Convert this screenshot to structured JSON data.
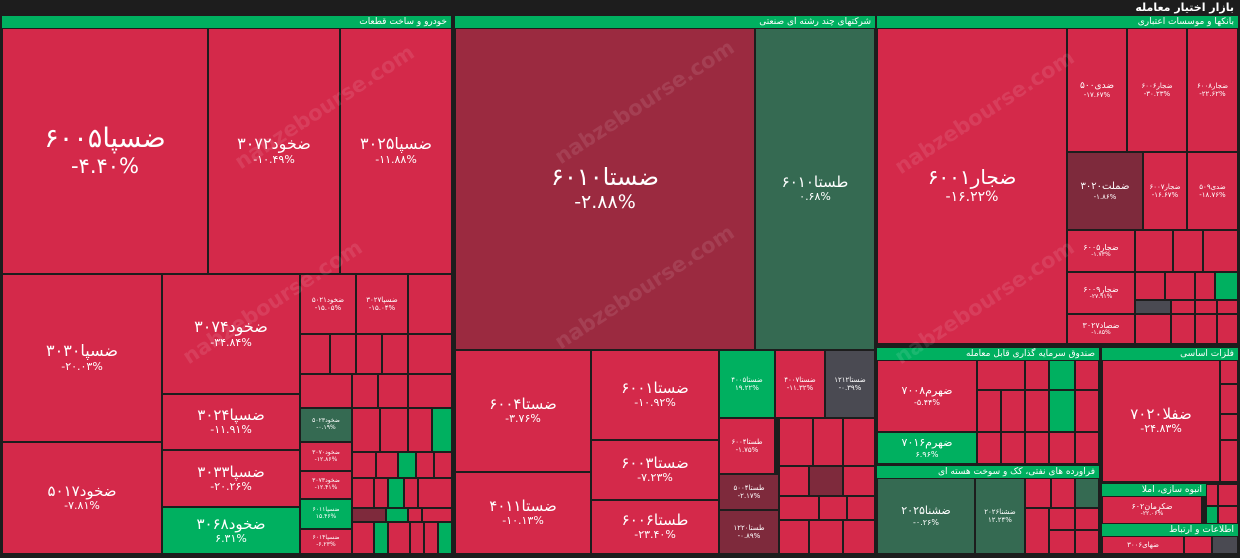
{
  "app_title": "بازار اختیار معامله",
  "watermark": "nabzebourse.com",
  "colors": {
    "negative": "#d4294a",
    "negative_dark": "#9b2a40",
    "negative_muted": "#7e2a3c",
    "positive": "#00b060",
    "positive_muted": "#356a52",
    "neutral": "#4a4a52",
    "header": "#00b060"
  },
  "chart_data": {
    "type": "treemap",
    "sectors": [
      {
        "name": "خودرو و ساخت قطعات",
        "tiles": [
          {
            "symbol": "ضسپا۶۰۰۵",
            "change": "-۴.۴۰%"
          },
          {
            "symbol": "ضخود۳۰۷۲",
            "change": "-۱۰.۴۹%"
          },
          {
            "symbol": "ضسپا۳۰۲۵",
            "change": "-۱۱.۸۸%"
          },
          {
            "symbol": "ضسپا۳۰۳۰",
            "change": "-۲۰.۰۳%"
          },
          {
            "symbol": "ضخود۳۰۷۴",
            "change": "-۳۴.۸۴%"
          },
          {
            "symbol": "ضخود۵۰۲۱",
            "change": "-۱۵.۰۵%"
          },
          {
            "symbol": "ضسپا۳۰۲۷",
            "change": "-۱۵.۰۴%"
          },
          {
            "symbol": "ضسپا۳۰۲۴",
            "change": "-۱۱.۹۱%"
          },
          {
            "symbol": "ضسپا۳۰۳۳",
            "change": "-۲۰.۲۶%"
          },
          {
            "symbol": "ضخود۳۰۶۸",
            "change": "۶.۳۱%"
          },
          {
            "symbol": "ضخود۵۰۱۷",
            "change": "-۷.۸۱%"
          },
          {
            "symbol": "ضخود۵۰۲۳",
            "change": "-۰.۱۹%"
          },
          {
            "symbol": "ضخود۳۰۷۰",
            "change": "-۱۲.۸۶%"
          },
          {
            "symbol": "ضخود۳۰۷۳",
            "change": "-۱۲.۴۱%"
          },
          {
            "symbol": "ضسپا۶۰۱۱",
            "change": "۱۵.۴۶%"
          },
          {
            "symbol": "ضسپا۶۰۱۴",
            "change": "-۶.۲۳%"
          }
        ]
      },
      {
        "name": "شرکتهای چند رشته ای صنعتی",
        "tiles": [
          {
            "symbol": "ضستا۶۰۱۰",
            "change": "-۲.۸۸%"
          },
          {
            "symbol": "طستا۶۰۱۰",
            "change": "۰.۶۸%"
          },
          {
            "symbol": "ضستا۶۰۰۴",
            "change": "-۳.۷۶%"
          },
          {
            "symbol": "ضستا۶۰۰۱",
            "change": "-۱۰.۹۲%"
          },
          {
            "symbol": "ضستا۴۰۰۵",
            "change": "۱۹.۲۲%"
          },
          {
            "symbol": "ضستا۴۰۰۷",
            "change": "-۱۱.۳۲%"
          },
          {
            "symbol": "ضستا۱۲۱۲",
            "change": "-۰.۳۹%"
          },
          {
            "symbol": "ضستا۶۰۰۳",
            "change": "-۷.۲۳%"
          },
          {
            "symbol": "طستا۶۰۰۴",
            "change": "-۱.۷۵%"
          },
          {
            "symbol": "ضستا۴۰۱۱",
            "change": "-۱۰.۱۳%"
          },
          {
            "symbol": "طستا۶۰۰۶",
            "change": "-۲۳.۴۰%"
          },
          {
            "symbol": "طستا۵۰۰۴",
            "change": "-۲.۱۷%"
          },
          {
            "symbol": "طستا۱۲۲۰",
            "change": "-۰.۸۹%"
          }
        ]
      },
      {
        "name": "بانکها و موسسات اعتباری",
        "tiles": [
          {
            "symbol": "ضجار۶۰۰۱",
            "change": "-۱۶.۲۲%"
          },
          {
            "symbol": "ضدی۵۰۰",
            "change": "-۱۷.۶۷%"
          },
          {
            "symbol": "ضجار۶۰۰۶",
            "change": "-۳۰.۲۳%"
          },
          {
            "symbol": "ضجار۶۰۰۸",
            "change": "-۲۲.۶۲%"
          },
          {
            "symbol": "ضملت۳۰۲۰",
            "change": "-۱.۸۶%"
          },
          {
            "symbol": "ضجار۶۰۰۷",
            "change": "-۱۶.۶۷%"
          },
          {
            "symbol": "ضدی۵۰۹",
            "change": "-۱۸.۷۶%"
          },
          {
            "symbol": "ضجار۶۰۰۵",
            "change": "-۱.۷۳%"
          },
          {
            "symbol": "ضجار۶۰۰۹",
            "change": "-۲۷.۹۱%"
          },
          {
            "symbol": "ضصاد۳۰۲۷",
            "change": "-۱.۸۵%"
          }
        ]
      },
      {
        "name": "صندوق سرمایه گذاری قابل معامله",
        "tiles": [
          {
            "symbol": "ضهرم۷۰۰۸",
            "change": "-۵.۴۴%"
          },
          {
            "symbol": "ضهرم۷۰۱۶",
            "change": "۶.۹۶%"
          }
        ]
      },
      {
        "name": "فلزات اساسی",
        "tiles": [
          {
            "symbol": "ضفلا۷۰۲۰",
            "change": "-۲۴.۸۳%"
          }
        ]
      },
      {
        "name": "فراورده های نفتی، کک و سوخت هسته ای",
        "tiles": [
          {
            "symbol": "ضشنا۲۰۲۵",
            "change": "-۰.۲۶%"
          },
          {
            "symbol": "ضشنا۲۰۲۶",
            "change": "۱۲.۲۴%"
          }
        ]
      },
      {
        "name": "انبوه سازی، املا",
        "tiles": [
          {
            "symbol": "ضکرمان۶۰۲",
            "change": "-۲۲.۰۶%"
          }
        ]
      },
      {
        "name": "اطلاعات و ارتباط",
        "tiles": [
          {
            "symbol": "ضهای۳۰۰۶",
            "change": ""
          }
        ]
      }
    ]
  }
}
